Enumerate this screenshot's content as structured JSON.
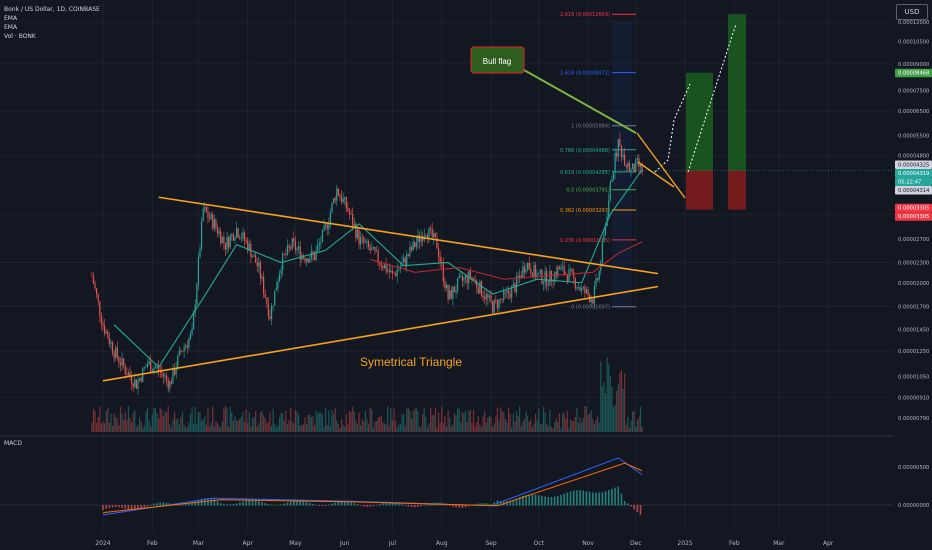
{
  "legend": {
    "symbol": "Bonk / US Dollar, 1D, COINBASE",
    "ema1": "EMA",
    "ema2": "EMA",
    "vol": "Vol · BONK"
  },
  "currency_button": "USD",
  "macd_title": "MACD",
  "annotations": {
    "bull_flag": "Bull flag",
    "triangle": "Symetrical Triangle"
  },
  "fib_levels": [
    {
      "label": "2.618 (0.00012659)",
      "color": "#f23645"
    },
    {
      "label": "1.618 (0.00008472)",
      "color": "#2962ff"
    },
    {
      "label": "1 (0.00005884)",
      "color": "#787b86"
    },
    {
      "label": "0.786 (0.00004988)",
      "color": "#22ab94"
    },
    {
      "label": "0.618 (0.00004285)",
      "color": "#22ab94"
    },
    {
      "label": "0.5 (0.00003791)",
      "color": "#4caf50"
    },
    {
      "label": "0.382 (0.00003297)",
      "color": "#ff9800"
    },
    {
      "label": "0.236 (0.00002685)",
      "color": "#f23645"
    },
    {
      "label": "0 (0.00001697)",
      "color": "#787b86"
    }
  ],
  "price_axis": [
    "0.00012000",
    "0.00010500",
    "0.00009000",
    "0.00007500",
    "0.00006500",
    "0.00005500",
    "0.00004800",
    "0.00003200",
    "0.00002700",
    "0.00002300",
    "0.00002000",
    "0.00001700",
    "0.00001450",
    "0.00001250",
    "0.00001050",
    "0.00000910",
    "0.00000790"
  ],
  "price_badges": {
    "target": "0.00008468",
    "gray": "0.00004325",
    "current": "0.00004319",
    "countdown": "05:22:47",
    "flag_low": "0.00004314",
    "stop1": "0.00003305",
    "stop2": "0.00003305"
  },
  "macd_axis": [
    "0.00000500",
    "0.00000000"
  ],
  "time_axis": [
    "2024",
    "Feb",
    "Mar",
    "Apr",
    "May",
    "Jun",
    "Jul",
    "Aug",
    "Sep",
    "Oct",
    "Nov",
    "Dec",
    "2025",
    "Feb",
    "Mar",
    "Apr"
  ],
  "colors": {
    "background": "#131722",
    "up": "#26a69a",
    "down": "#ef5350",
    "ema_fast": "#22ab94",
    "ema_slow": "#b22833",
    "trendline": "#f7a21b",
    "macd_line": "#2962ff",
    "signal_line": "#ff6d00",
    "profit_zone": "#1b5e20",
    "loss_zone": "#7f1d1d"
  },
  "chart_data": {
    "type": "line",
    "title": "Bonk / US Dollar, 1D, COINBASE",
    "xlabel": "",
    "ylabel": "",
    "ylog": true,
    "ylim": [
      7.5e-06,
      0.00013
    ],
    "series": [
      {
        "name": "Bonk / US Dollar",
        "points": [
          [
            "2023-12-25",
            2.1e-05
          ],
          [
            "2024-01-01",
            1.5e-05
          ],
          [
            "2024-01-08",
            1.25e-05
          ],
          [
            "2024-01-15",
            1.1e-05
          ],
          [
            "2024-01-22",
            1e-05
          ],
          [
            "2024-01-29",
            1.15e-05
          ],
          [
            "2024-02-05",
            1.1e-05
          ],
          [
            "2024-02-12",
            1e-05
          ],
          [
            "2024-02-19",
            1.25e-05
          ],
          [
            "2024-02-26",
            1.4e-05
          ],
          [
            "2024-03-04",
            3.3e-05
          ],
          [
            "2024-03-11",
            3e-05
          ],
          [
            "2024-03-18",
            2.6e-05
          ],
          [
            "2024-03-25",
            2.9e-05
          ],
          [
            "2024-04-01",
            2.6e-05
          ],
          [
            "2024-04-08",
            2.2e-05
          ],
          [
            "2024-04-15",
            1.6e-05
          ],
          [
            "2024-04-22",
            2.3e-05
          ],
          [
            "2024-04-29",
            2.6e-05
          ],
          [
            "2024-05-06",
            2.4e-05
          ],
          [
            "2024-05-13",
            2.4e-05
          ],
          [
            "2024-05-20",
            2.9e-05
          ],
          [
            "2024-05-27",
            3.8e-05
          ],
          [
            "2024-06-03",
            3.3e-05
          ],
          [
            "2024-06-10",
            2.7e-05
          ],
          [
            "2024-06-17",
            2.5e-05
          ],
          [
            "2024-06-24",
            2.3e-05
          ],
          [
            "2024-07-01",
            2.1e-05
          ],
          [
            "2024-07-08",
            2.3e-05
          ],
          [
            "2024-07-15",
            2.6e-05
          ],
          [
            "2024-07-22",
            2.9e-05
          ],
          [
            "2024-07-29",
            2.6e-05
          ],
          [
            "2024-08-05",
            1.8e-05
          ],
          [
            "2024-08-12",
            2e-05
          ],
          [
            "2024-08-19",
            2.1e-05
          ],
          [
            "2024-08-26",
            1.9e-05
          ],
          [
            "2024-09-02",
            1.7e-05
          ],
          [
            "2024-09-09",
            1.8e-05
          ],
          [
            "2024-09-16",
            1.95e-05
          ],
          [
            "2024-09-23",
            2.3e-05
          ],
          [
            "2024-09-30",
            2.1e-05
          ],
          [
            "2024-10-07",
            2.05e-05
          ],
          [
            "2024-10-14",
            2.2e-05
          ],
          [
            "2024-10-21",
            2.1e-05
          ],
          [
            "2024-10-28",
            1.9e-05
          ],
          [
            "2024-11-04",
            1.8e-05
          ],
          [
            "2024-11-08",
            2.15e-05
          ],
          [
            "2024-11-12",
            3e-05
          ],
          [
            "2024-11-16",
            4.2e-05
          ],
          [
            "2024-11-20",
            5.2e-05
          ],
          [
            "2024-11-24",
            4.7e-05
          ],
          [
            "2024-11-28",
            4.3e-05
          ],
          [
            "2024-12-02",
            4.5e-05
          ],
          [
            "2024-12-05",
            4.32e-05
          ]
        ]
      },
      {
        "name": "EMA",
        "points": [
          [
            "2024-01-08",
            1.5e-05
          ],
          [
            "2024-02-05",
            1.12e-05
          ],
          [
            "2024-03-04",
            1.8e-05
          ],
          [
            "2024-03-25",
            2.6e-05
          ],
          [
            "2024-04-22",
            2.3e-05
          ],
          [
            "2024-05-20",
            2.5e-05
          ],
          [
            "2024-06-10",
            3e-05
          ],
          [
            "2024-07-08",
            2.25e-05
          ],
          [
            "2024-08-05",
            2.3e-05
          ],
          [
            "2024-09-02",
            1.85e-05
          ],
          [
            "2024-09-30",
            2.05e-05
          ],
          [
            "2024-10-28",
            2e-05
          ],
          [
            "2024-11-15",
            3.2e-05
          ],
          [
            "2024-12-05",
            4.35e-05
          ]
        ]
      },
      {
        "name": "EMA",
        "points": [
          [
            "2024-06-17",
            2.35e-05
          ],
          [
            "2024-07-15",
            2.15e-05
          ],
          [
            "2024-08-12",
            2.22e-05
          ],
          [
            "2024-09-09",
            2.05e-05
          ],
          [
            "2024-10-07",
            2.1e-05
          ],
          [
            "2024-11-04",
            2.15e-05
          ],
          [
            "2024-11-20",
            2.45e-05
          ],
          [
            "2024-12-05",
            2.65e-05
          ]
        ]
      }
    ],
    "trendlines": [
      {
        "from": [
          "2024-01-01",
          1.02e-05
        ],
        "to": [
          "2024-12-15",
          1.95e-05
        ]
      },
      {
        "from": [
          "2024-02-05",
          3.6e-05
        ],
        "to": [
          "2024-12-15",
          2.13e-05
        ]
      }
    ],
    "volume_visible": true,
    "macd": {
      "title": "MACD",
      "lines": [
        {
          "points": [
            [
              "2024-01-01",
              -1.3e-06
            ],
            [
              "2024-03-10",
              9e-07
            ],
            [
              "2024-06-05",
              5e-07
            ],
            [
              "2024-09-01",
              -1e-07
            ],
            [
              "2024-11-20",
              6.2e-06
            ],
            [
              "2024-12-05",
              4e-06
            ]
          ]
        },
        {
          "points": [
            [
              "2024-01-01",
              -1e-06
            ],
            [
              "2024-03-15",
              7e-07
            ],
            [
              "2024-06-10",
              4e-07
            ],
            [
              "2024-09-05",
              -1e-07
            ],
            [
              "2024-11-24",
              5.5e-06
            ],
            [
              "2024-12-05",
              4.5e-06
            ]
          ]
        }
      ]
    }
  }
}
